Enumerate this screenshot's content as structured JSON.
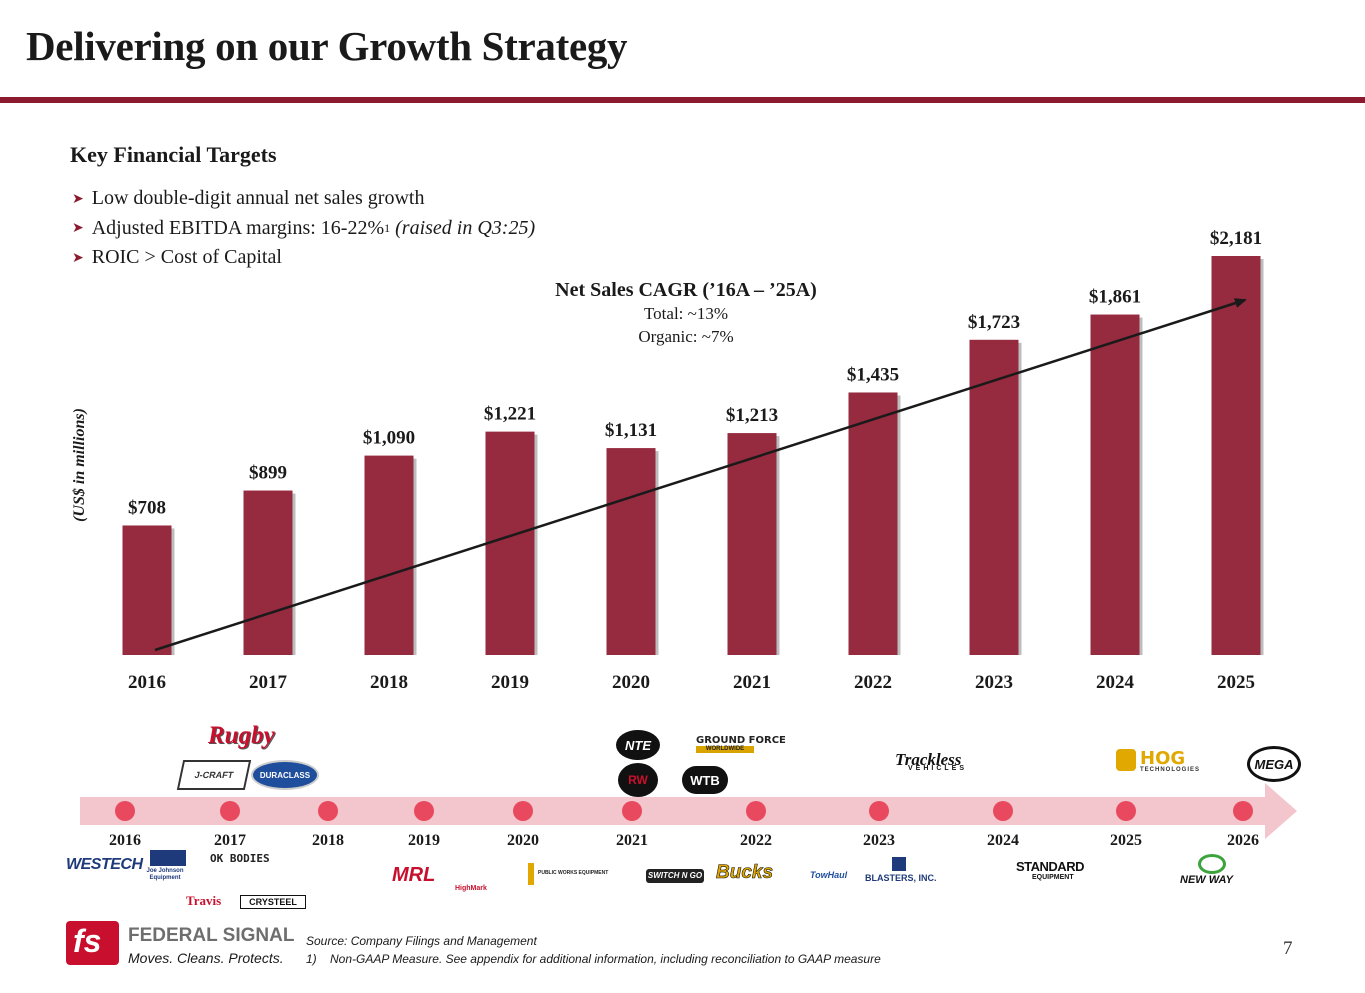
{
  "header": {
    "title": "Delivering on our Growth Strategy"
  },
  "targets": {
    "heading": "Key Financial Targets",
    "items": [
      {
        "text": "Low double-digit annual net sales growth"
      },
      {
        "text": "Adjusted EBITDA margins: 16-22%",
        "sup": "1",
        "note": "(raised in Q3:25)"
      },
      {
        "text": "ROIC > Cost of Capital"
      }
    ]
  },
  "cagr": {
    "heading": "Net Sales CAGR (’16A – ’25A)",
    "total": "Total: ~13%",
    "organic": "Organic: ~7%"
  },
  "colors": {
    "bar": "#962a3f",
    "accent": "#8b1a2e",
    "timeline_band": "#f2c6cc",
    "timeline_dot": "#e8495f"
  },
  "chart_data": {
    "type": "bar",
    "categories": [
      "2016",
      "2017",
      "2018",
      "2019",
      "2020",
      "2021",
      "2022",
      "2023",
      "2024",
      "2025"
    ],
    "values": [
      708,
      899,
      1090,
      1221,
      1131,
      1213,
      1435,
      1723,
      1861,
      2181
    ],
    "value_labels": [
      "$708",
      "$899",
      "$1,090",
      "$1,221",
      "$1,131",
      "$1,213",
      "$1,435",
      "$1,723",
      "$1,861",
      "$2,181"
    ],
    "ylabel": "(US$ in millions)",
    "ylim": [
      0,
      2500
    ],
    "grid": false,
    "trend_arrow": true
  },
  "timeline": {
    "years": [
      "2016",
      "2017",
      "2018",
      "2019",
      "2020",
      "2021",
      "2022",
      "2023",
      "2024",
      "2025",
      "2026"
    ],
    "logos_above": [
      {
        "name": "Rugby",
        "color": "#c8102e"
      },
      {
        "name": "J-CRAFT",
        "color": "#333333"
      },
      {
        "name": "DURACLASS",
        "color": "#1f4e9c"
      },
      {
        "name": "NTE",
        "color": "#c8102e"
      },
      {
        "name": "GROUND FORCE",
        "color": "#222222"
      },
      {
        "name": "WORLDWIDE",
        "color": "#d9a300"
      },
      {
        "name": "RW",
        "color": "#c8102e"
      },
      {
        "name": "WTB",
        "color": "#111111"
      },
      {
        "name": "Trackless",
        "color": "#111111"
      },
      {
        "name": "VEHICLES",
        "color": "#111111"
      },
      {
        "name": "HOG",
        "color": "#e0a800"
      },
      {
        "name": "TECHNOLOGIES",
        "color": "#333333"
      },
      {
        "name": "MEGA",
        "color": "#111111"
      }
    ],
    "logos_below": [
      {
        "name": "WESTECH",
        "color": "#1f3a7a"
      },
      {
        "name": "Joe Johnson Equipment",
        "color": "#1f3a7a"
      },
      {
        "name": "OK BODIES",
        "color": "#222222"
      },
      {
        "name": "Travis",
        "color": "#c8102e"
      },
      {
        "name": "CRYSTEEL",
        "color": "#111111"
      },
      {
        "name": "MRL",
        "color": "#c8102e"
      },
      {
        "name": "HighMark",
        "color": "#c8102e"
      },
      {
        "name": "PUBLIC WORKS EQUIPMENT",
        "color": "#222222"
      },
      {
        "name": "SWITCH N GO",
        "color": "#222222"
      },
      {
        "name": "Bucks",
        "color": "#e0a800"
      },
      {
        "name": "TowHaul",
        "color": "#1f4e9c"
      },
      {
        "name": "BLASTERS, INC.",
        "color": "#1f3a7a"
      },
      {
        "name": "STANDARD",
        "color": "#111111"
      },
      {
        "name": "EQUIPMENT",
        "color": "#111111"
      },
      {
        "name": "NEW WAY",
        "color": "#111111"
      }
    ]
  },
  "footer": {
    "brand_name": "FEDERAL SIGNAL",
    "tagline": "Moves. Cleans. Protects.",
    "source": "Source: Company Filings and Management",
    "note_num": "1)",
    "note": "Non-GAAP Measure. See appendix for additional information, including reconciliation to GAAP measure",
    "page": "7"
  }
}
